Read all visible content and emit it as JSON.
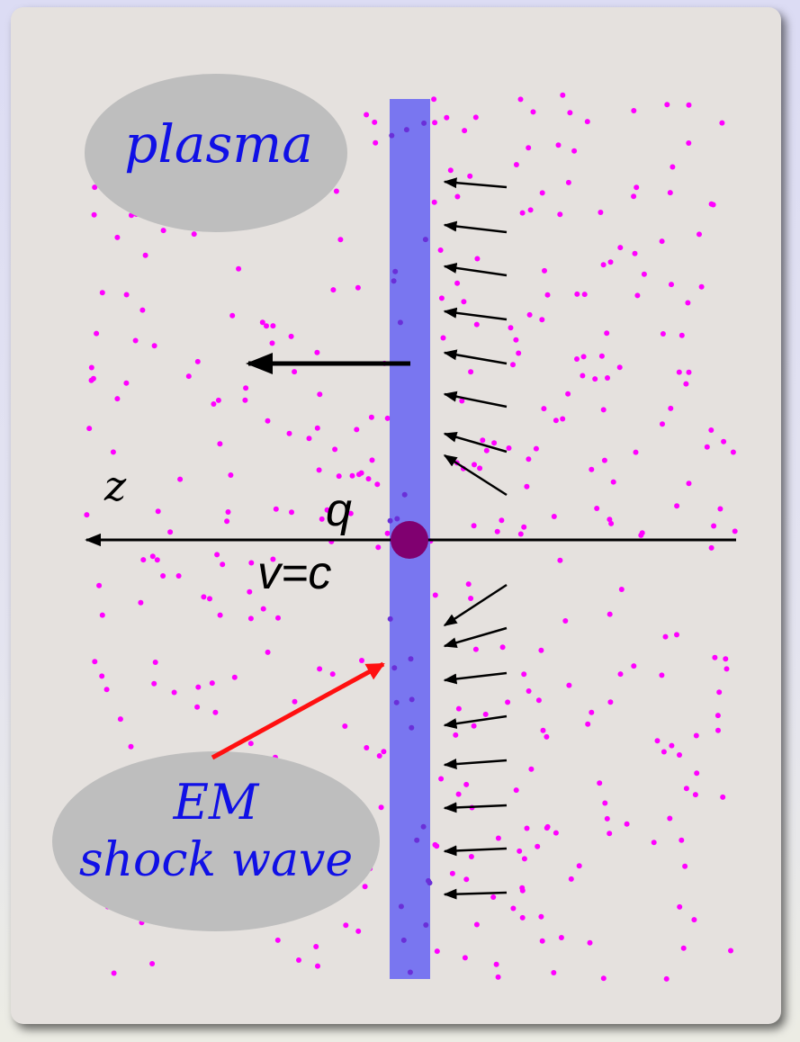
{
  "labels": {
    "plasma": "plasma",
    "axis": "z",
    "charge": "q",
    "velocity": "v=c",
    "em_line1": "EM",
    "em_line2": "shock wave"
  },
  "colors": {
    "background": "#e5e1de",
    "particles": "#ff00ff",
    "wavefront": "#7370f0",
    "charge": "#800070",
    "label_blue": "#1010e6",
    "pointer": "#ff1010",
    "ellipse": "#bebebe"
  },
  "icons": {
    "charge": "filled-circle",
    "motion": "left-arrow",
    "field": "field-vector-arrows"
  }
}
